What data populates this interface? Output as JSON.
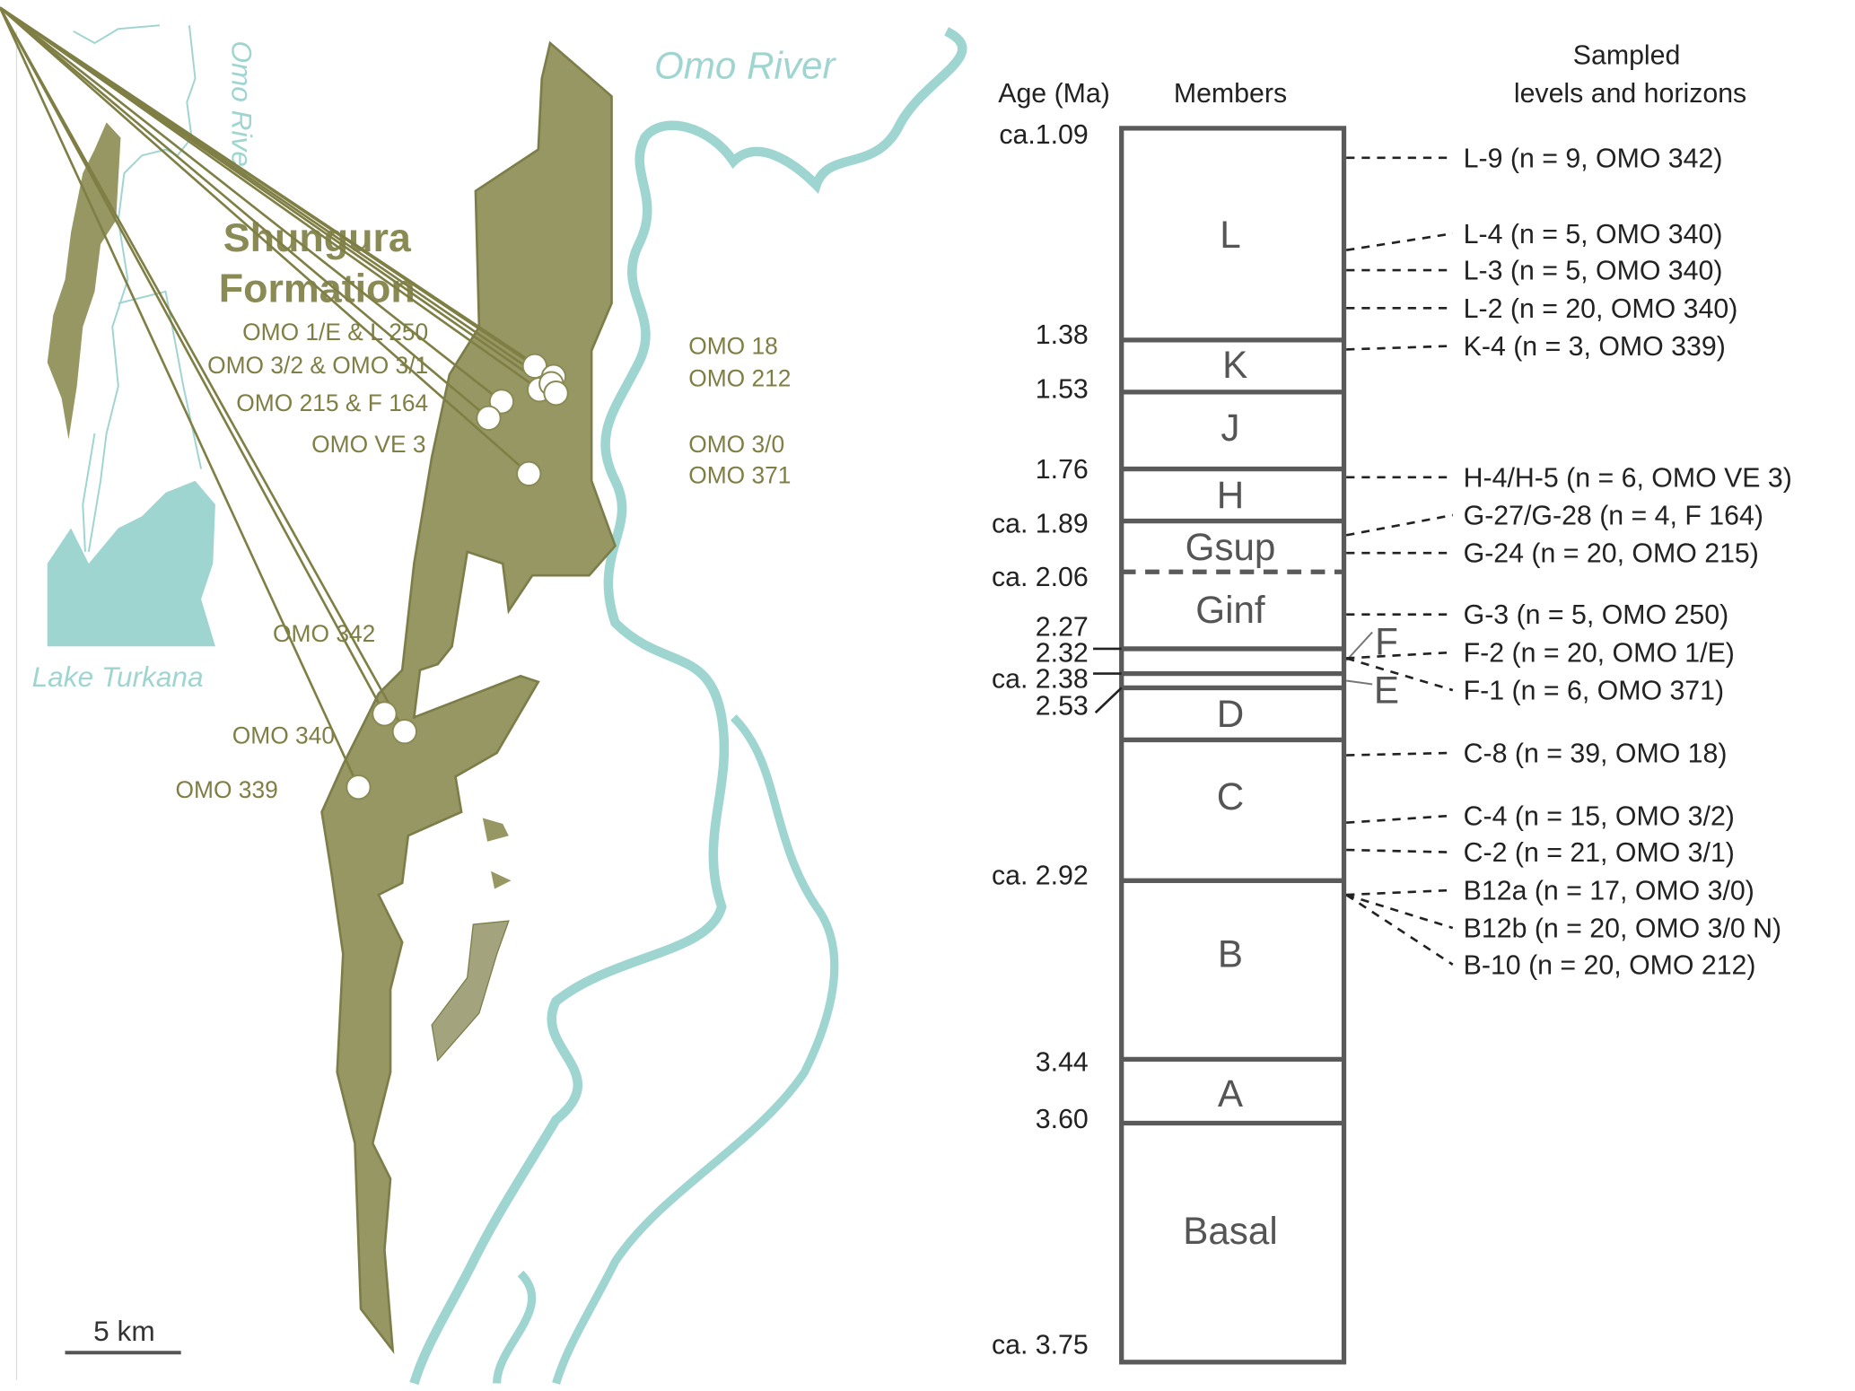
{
  "colors": {
    "formation": "#979764",
    "water": "#9fd5d1",
    "label": "#7f7f45",
    "column": "#5a5a5a"
  },
  "map": {
    "title_line1": "Shungura",
    "title_line2": "Formation",
    "river_main": "Omo River",
    "river_inset": "Omo River",
    "lake": "Lake Turkana",
    "scale": "5 km",
    "sites": [
      {
        "label": "OMO 1/E & L 250"
      },
      {
        "label": "OMO 3/2 & OMO 3/1"
      },
      {
        "label": "OMO 215 & F 164"
      },
      {
        "label": "OMO VE 3"
      },
      {
        "label": "OMO 18"
      },
      {
        "label": "OMO 212"
      },
      {
        "label": "OMO 3/0"
      },
      {
        "label": "OMO 371"
      },
      {
        "label": "OMO 342"
      },
      {
        "label": "OMO 340"
      },
      {
        "label": "OMO 339"
      }
    ]
  },
  "column": {
    "age_header": "Age (Ma)",
    "members_header": "Members",
    "samples_header_line1": "Sampled",
    "samples_header_line2": "levels and horizons",
    "ages": [
      "ca.1.09",
      "1.38",
      "1.53",
      "1.76",
      "ca. 1.89",
      "ca. 2.06",
      "2.27",
      "2.32",
      "ca. 2.38",
      "2.53",
      "ca. 2.92",
      "3.44",
      "3.60",
      "ca. 3.75"
    ],
    "members": [
      "L",
      "K",
      "J",
      "H",
      "Gsup",
      "Ginf",
      "F",
      "E",
      "D",
      "C",
      "B",
      "A",
      "Basal"
    ],
    "samples": [
      "L-9 (n = 9, OMO 342)",
      "L-4 (n = 5, OMO 340)",
      "L-3 (n = 5, OMO 340)",
      "L-2 (n = 20, OMO 340)",
      "K-4 (n = 3, OMO 339)",
      "H-4/H-5 (n = 6, OMO VE 3)",
      "G-27/G-28 (n = 4, F 164)",
      "G-24 (n = 20, OMO 215)",
      "G-3 (n = 5, OMO 250)",
      "F-2 (n = 20, OMO 1/E)",
      "F-1 (n = 6, OMO 371)",
      "C-8 (n = 39, OMO 18)",
      "C-4 (n = 15, OMO 3/2)",
      "C-2 (n = 21, OMO 3/1)",
      "B12a (n = 17, OMO 3/0)",
      "B12b (n = 20, OMO 3/0 N)",
      "B-10  (n = 20, OMO 212)"
    ]
  }
}
